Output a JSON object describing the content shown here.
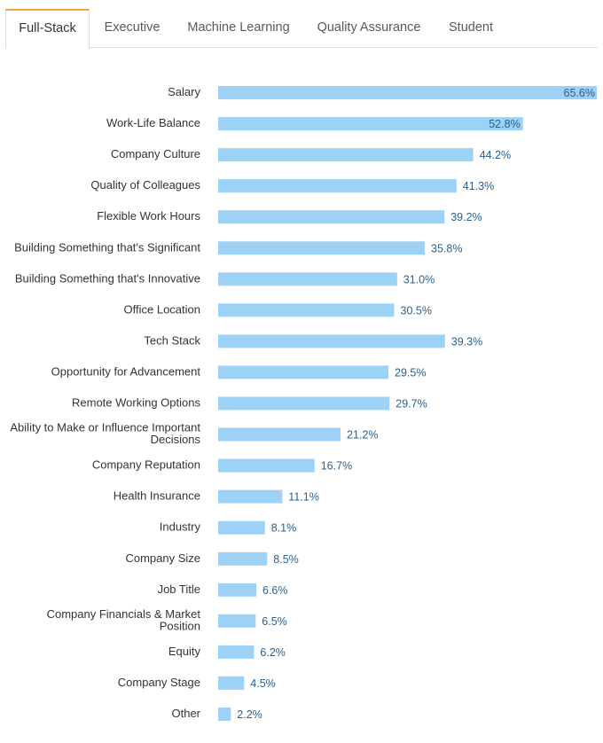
{
  "tabs": [
    {
      "label": "Full-Stack",
      "active": true
    },
    {
      "label": "Executive",
      "active": false
    },
    {
      "label": "Machine Learning",
      "active": false
    },
    {
      "label": "Quality Assurance",
      "active": false
    },
    {
      "label": "Student",
      "active": false
    }
  ],
  "colors": {
    "bar": "#9dd1f6",
    "value_label": "#2b5f8c",
    "active_tab_accent": "#f0a33a"
  },
  "chart_data": {
    "type": "bar",
    "orientation": "horizontal",
    "categories": [
      [
        "Salary"
      ],
      [
        "Work-Life Balance"
      ],
      [
        "Company Culture"
      ],
      [
        "Quality of Colleagues"
      ],
      [
        "Flexible Work Hours"
      ],
      [
        "Building Something that's Significant"
      ],
      [
        "Building Something that's Innovative"
      ],
      [
        "Office Location"
      ],
      [
        "Tech Stack"
      ],
      [
        "Opportunity for Advancement"
      ],
      [
        "Remote Working Options"
      ],
      [
        "Ability to Make or Influence Important",
        "Decisions"
      ],
      [
        "Company Reputation"
      ],
      [
        "Health Insurance"
      ],
      [
        "Industry"
      ],
      [
        "Company Size"
      ],
      [
        "Job Title"
      ],
      [
        "Company Financials & Market",
        "Position"
      ],
      [
        "Equity"
      ],
      [
        "Company Stage"
      ],
      [
        "Other"
      ]
    ],
    "values": [
      65.6,
      52.8,
      44.2,
      41.3,
      39.2,
      35.8,
      31.0,
      30.5,
      39.3,
      29.5,
      29.7,
      21.2,
      16.7,
      11.1,
      8.1,
      8.5,
      6.6,
      6.5,
      6.2,
      4.5,
      2.2
    ],
    "value_labels": [
      "65.6%",
      "52.8%",
      "44.2%",
      "41.3%",
      "39.2%",
      "35.8%",
      "31.0%",
      "30.5%",
      "39.3%",
      "29.5%",
      "29.7%",
      "21.2%",
      "16.7%",
      "11.1%",
      "8.1%",
      "8.5%",
      "6.6%",
      "6.5%",
      "6.2%",
      "4.5%",
      "2.2%"
    ],
    "xlim": [
      0,
      65.6
    ],
    "grid": false,
    "legend": "none"
  }
}
